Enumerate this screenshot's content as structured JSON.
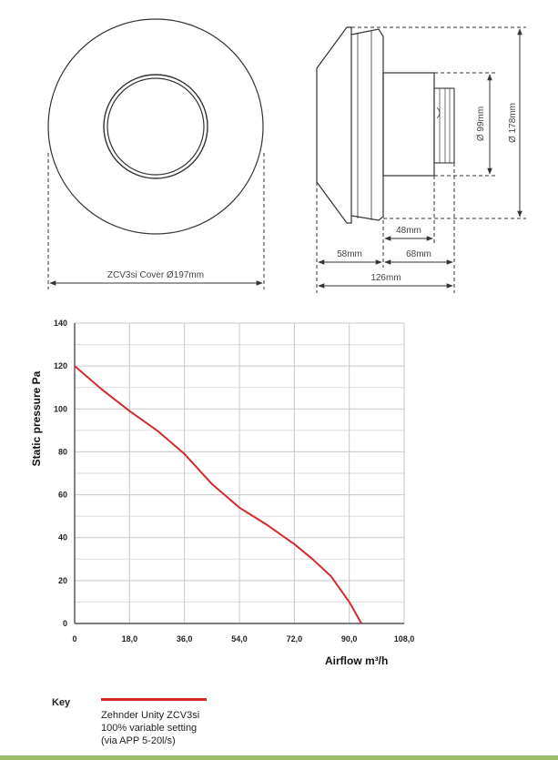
{
  "drawings": {
    "front_view": {
      "diameter_label": "ZCV3si Cover Ø197mm"
    },
    "side_view": {
      "dim_178": "Ø 178mm",
      "dim_99": "Ø 99mm",
      "dim_48": "48mm",
      "dim_58": "58mm",
      "dim_68": "68mm",
      "dim_126": "126mm"
    }
  },
  "chart_data": {
    "type": "line",
    "title": "",
    "xlabel": "Airflow  m³/h",
    "ylabel": "Static pressure  Pa",
    "xlim": [
      0,
      108
    ],
    "ylim": [
      0,
      140
    ],
    "x_ticks": [
      0,
      18,
      36,
      54,
      72,
      90,
      108
    ],
    "x_tick_labels": [
      "0",
      "18,0",
      "36,0",
      "54,0",
      "72,0",
      "90,0",
      "108,0"
    ],
    "y_ticks": [
      0,
      20,
      40,
      60,
      80,
      100,
      120,
      140
    ],
    "y_tick_labels": [
      "0",
      "20",
      "40",
      "60",
      "80",
      "100",
      "120",
      "140"
    ],
    "grid": true,
    "series": [
      {
        "name": "Zehnder Unity ZCV3si 100% variable setting (via APP 5-20l/s)",
        "color": "#d42a2a",
        "x": [
          0,
          9,
          18,
          27,
          36,
          45,
          54,
          63,
          72,
          78,
          84,
          90,
          94
        ],
        "y": [
          120,
          109,
          99,
          90,
          79,
          65,
          54,
          46,
          37,
          30,
          22,
          10,
          0
        ]
      }
    ]
  },
  "key": {
    "title": "Key",
    "lines": [
      "Zehnder Unity ZCV3si",
      "100% variable setting",
      "(via APP 5-20l/s)"
    ]
  }
}
